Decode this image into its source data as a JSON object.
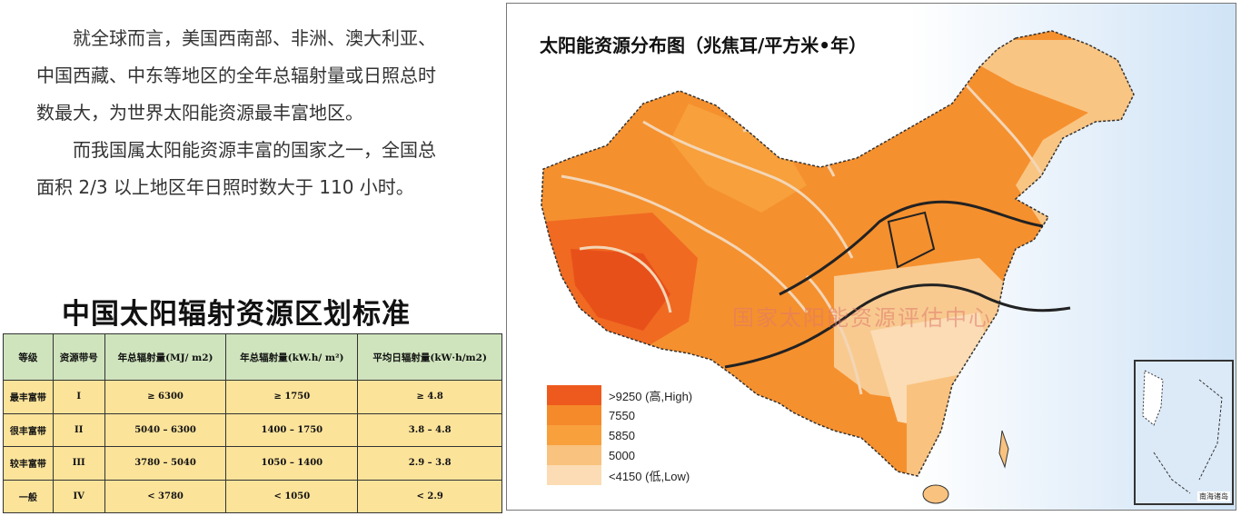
{
  "intro": {
    "para1": "就全球而言，美国西南部、非洲、澳大利亚、中国西藏、中东等地区的全年总辐射量或日照总时数最大，为世界太阳能资源最丰富地区。",
    "para2": "而我国属太阳能资源丰富的国家之一，全国总面积 2/3 以上地区年日照时数大于 110 小时。"
  },
  "table": {
    "title": "中国太阳辐射资源区划标准",
    "headers": [
      "等级",
      "资源带号",
      "年总辐射量(MJ/ m2)",
      "年总辐射量(kW.h/ m²)",
      "平均日辐射量(kW·h/m2)"
    ],
    "rows": [
      [
        "最丰富带",
        "I",
        "≥ 6300",
        "≥ 1750",
        "≥ 4.8"
      ],
      [
        "很丰富带",
        "II",
        "5040 – 6300",
        "1400 – 1750",
        "3.8 – 4.8"
      ],
      [
        "较丰富带",
        "III",
        "3780 – 5040",
        "1050 – 1400",
        "2.9 – 3.8"
      ],
      [
        "一般",
        "IV",
        "< 3780",
        "< 1050",
        "< 2.9"
      ]
    ]
  },
  "map": {
    "title": "太阳能资源分布图（兆焦耳/平方米•年）",
    "watermark": "国家太阳能资源评估中心",
    "inset_label": "南海诸岛",
    "legend": [
      {
        "label": ">9250 (高,High)",
        "color": "#ee5a1e"
      },
      {
        "label": "7550",
        "color": "#f58a2a"
      },
      {
        "label": "5850",
        "color": "#f7a03c"
      },
      {
        "label": "5000",
        "color": "#f9c27e"
      },
      {
        "label": "<4150 (低,Low)",
        "color": "#fbdcb4"
      }
    ],
    "colors": {
      "ocean": "#d6e8f7",
      "land_high": "#ee5a1e",
      "land_mid": "#f58a2a",
      "land_low": "#fbdcb4",
      "contour": "#f3d6b6",
      "border": "#222222"
    }
  }
}
